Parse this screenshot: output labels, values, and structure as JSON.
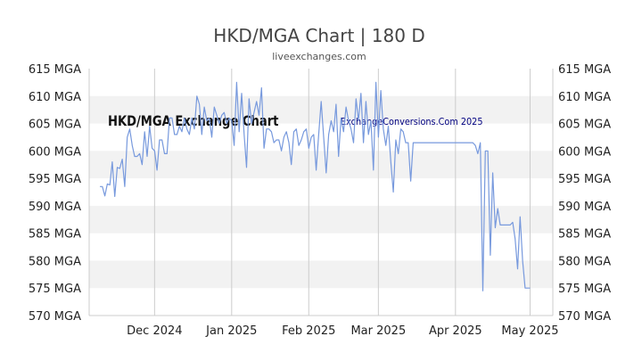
{
  "chart_data": {
    "type": "line",
    "title": "HKD/MGA Chart | 180 D",
    "subtitle": "liveexchanges.com",
    "watermark_left": "HKD/MGA Exchange Chart",
    "watermark_right": "ExchangeConversions.Com 2025",
    "ylim": [
      570,
      615
    ],
    "y_ticks": [
      615,
      610,
      605,
      600,
      595,
      590,
      585,
      580,
      575,
      570
    ],
    "y_unit": "MGA",
    "x_range": [
      "2024-11-09",
      "2025-05-08"
    ],
    "x_ticks": [
      {
        "date": "2024-12-01",
        "label": "Dec 2024"
      },
      {
        "date": "2025-01-01",
        "label": "Jan 2025"
      },
      {
        "date": "2025-02-01",
        "label": "Feb 2025"
      },
      {
        "date": "2025-03-01",
        "label": "Mar 2025"
      },
      {
        "date": "2025-04-01",
        "label": "Apr 2025"
      },
      {
        "date": "2025-05-01",
        "label": "May 2025"
      }
    ],
    "grid": true,
    "line_color": "#7799dd",
    "band_color": "#f2f2f2",
    "series": [
      {
        "values": [
          {
            "x": "2024-11-09",
            "y": 593.5
          },
          {
            "x": "2024-11-10",
            "y": 593.5
          },
          {
            "x": "2024-11-11",
            "y": 591.8
          },
          {
            "x": "2024-11-12",
            "y": 594.0
          },
          {
            "x": "2024-11-13",
            "y": 593.8
          },
          {
            "x": "2024-11-14",
            "y": 598.0
          },
          {
            "x": "2024-11-15",
            "y": 591.7
          },
          {
            "x": "2024-11-16",
            "y": 597.0
          },
          {
            "x": "2024-11-17",
            "y": 596.8
          },
          {
            "x": "2024-11-18",
            "y": 598.5
          },
          {
            "x": "2024-11-19",
            "y": 593.5
          },
          {
            "x": "2024-11-20",
            "y": 602.5
          },
          {
            "x": "2024-11-21",
            "y": 604.0
          },
          {
            "x": "2024-11-22",
            "y": 601.0
          },
          {
            "x": "2024-11-23",
            "y": 599.0
          },
          {
            "x": "2024-11-24",
            "y": 599.0
          },
          {
            "x": "2024-11-25",
            "y": 599.5
          },
          {
            "x": "2024-11-26",
            "y": 597.5
          },
          {
            "x": "2024-11-27",
            "y": 603.5
          },
          {
            "x": "2024-11-28",
            "y": 599.0
          },
          {
            "x": "2024-11-29",
            "y": 604.5
          },
          {
            "x": "2024-11-30",
            "y": 600.5
          },
          {
            "x": "2024-12-01",
            "y": 600.0
          },
          {
            "x": "2024-12-02",
            "y": 596.5
          },
          {
            "x": "2024-12-03",
            "y": 602.0
          },
          {
            "x": "2024-12-04",
            "y": 602.0
          },
          {
            "x": "2024-12-05",
            "y": 599.5
          },
          {
            "x": "2024-12-06",
            "y": 599.5
          },
          {
            "x": "2024-12-07",
            "y": 606.0
          },
          {
            "x": "2024-12-08",
            "y": 606.0
          },
          {
            "x": "2024-12-09",
            "y": 603.0
          },
          {
            "x": "2024-12-10",
            "y": 603.0
          },
          {
            "x": "2024-12-11",
            "y": 604.5
          },
          {
            "x": "2024-12-12",
            "y": 603.5
          },
          {
            "x": "2024-12-13",
            "y": 606.0
          },
          {
            "x": "2024-12-14",
            "y": 604.0
          },
          {
            "x": "2024-12-15",
            "y": 603.0
          },
          {
            "x": "2024-12-16",
            "y": 606.0
          },
          {
            "x": "2024-12-17",
            "y": 604.0
          },
          {
            "x": "2024-12-18",
            "y": 610.0
          },
          {
            "x": "2024-12-19",
            "y": 608.5
          },
          {
            "x": "2024-12-20",
            "y": 603.0
          },
          {
            "x": "2024-12-21",
            "y": 608.0
          },
          {
            "x": "2024-12-22",
            "y": 605.5
          },
          {
            "x": "2024-12-23",
            "y": 606.0
          },
          {
            "x": "2024-12-24",
            "y": 602.5
          },
          {
            "x": "2024-12-25",
            "y": 608.0
          },
          {
            "x": "2024-12-26",
            "y": 606.5
          },
          {
            "x": "2024-12-27",
            "y": 605.0
          },
          {
            "x": "2024-12-28",
            "y": 606.5
          },
          {
            "x": "2024-12-29",
            "y": 607.0
          },
          {
            "x": "2024-12-30",
            "y": 605.0
          },
          {
            "x": "2024-12-31",
            "y": 606.0
          },
          {
            "x": "2025-01-01",
            "y": 605.5
          },
          {
            "x": "2025-01-02",
            "y": 601.0
          },
          {
            "x": "2025-01-03",
            "y": 612.5
          },
          {
            "x": "2025-01-04",
            "y": 603.5
          },
          {
            "x": "2025-01-05",
            "y": 610.5
          },
          {
            "x": "2025-01-06",
            "y": 603.0
          },
          {
            "x": "2025-01-07",
            "y": 597.0
          },
          {
            "x": "2025-01-08",
            "y": 609.5
          },
          {
            "x": "2025-01-09",
            "y": 605.0
          },
          {
            "x": "2025-01-10",
            "y": 607.0
          },
          {
            "x": "2025-01-11",
            "y": 609.0
          },
          {
            "x": "2025-01-12",
            "y": 606.5
          },
          {
            "x": "2025-01-13",
            "y": 611.5
          },
          {
            "x": "2025-01-14",
            "y": 600.5
          },
          {
            "x": "2025-01-15",
            "y": 604.0
          },
          {
            "x": "2025-01-16",
            "y": 604.0
          },
          {
            "x": "2025-01-17",
            "y": 603.5
          },
          {
            "x": "2025-01-18",
            "y": 601.5
          },
          {
            "x": "2025-01-19",
            "y": 602.0
          },
          {
            "x": "2025-01-20",
            "y": 602.0
          },
          {
            "x": "2025-01-21",
            "y": 600.0
          },
          {
            "x": "2025-01-22",
            "y": 602.5
          },
          {
            "x": "2025-01-23",
            "y": 603.5
          },
          {
            "x": "2025-01-24",
            "y": 601.5
          },
          {
            "x": "2025-01-25",
            "y": 597.5
          },
          {
            "x": "2025-01-26",
            "y": 603.5
          },
          {
            "x": "2025-01-27",
            "y": 604.0
          },
          {
            "x": "2025-01-28",
            "y": 601.0
          },
          {
            "x": "2025-01-29",
            "y": 602.0
          },
          {
            "x": "2025-01-30",
            "y": 603.5
          },
          {
            "x": "2025-01-31",
            "y": 604.0
          },
          {
            "x": "2025-02-01",
            "y": 600.5
          },
          {
            "x": "2025-02-02",
            "y": 602.5
          },
          {
            "x": "2025-02-03",
            "y": 603.0
          },
          {
            "x": "2025-02-04",
            "y": 596.5
          },
          {
            "x": "2025-02-05",
            "y": 603.0
          },
          {
            "x": "2025-02-06",
            "y": 609.0
          },
          {
            "x": "2025-02-07",
            "y": 602.5
          },
          {
            "x": "2025-02-08",
            "y": 596.0
          },
          {
            "x": "2025-02-09",
            "y": 603.0
          },
          {
            "x": "2025-02-10",
            "y": 605.5
          },
          {
            "x": "2025-02-11",
            "y": 603.5
          },
          {
            "x": "2025-02-12",
            "y": 608.5
          },
          {
            "x": "2025-02-13",
            "y": 599.0
          },
          {
            "x": "2025-02-14",
            "y": 606.0
          },
          {
            "x": "2025-02-15",
            "y": 603.5
          },
          {
            "x": "2025-02-16",
            "y": 608.0
          },
          {
            "x": "2025-02-17",
            "y": 605.5
          },
          {
            "x": "2025-02-18",
            "y": 604.0
          },
          {
            "x": "2025-02-19",
            "y": 601.5
          },
          {
            "x": "2025-02-20",
            "y": 609.5
          },
          {
            "x": "2025-02-21",
            "y": 605.5
          },
          {
            "x": "2025-02-22",
            "y": 610.5
          },
          {
            "x": "2025-02-23",
            "y": 601.5
          },
          {
            "x": "2025-02-24",
            "y": 609.0
          },
          {
            "x": "2025-02-25",
            "y": 603.0
          },
          {
            "x": "2025-02-26",
            "y": 605.5
          },
          {
            "x": "2025-02-27",
            "y": 596.5
          },
          {
            "x": "2025-02-28",
            "y": 612.5
          },
          {
            "x": "2025-03-01",
            "y": 602.5
          },
          {
            "x": "2025-03-02",
            "y": 611.0
          },
          {
            "x": "2025-03-03",
            "y": 604.0
          },
          {
            "x": "2025-03-04",
            "y": 601.0
          },
          {
            "x": "2025-03-05",
            "y": 604.5
          },
          {
            "x": "2025-03-06",
            "y": 598.0
          },
          {
            "x": "2025-03-07",
            "y": 592.5
          },
          {
            "x": "2025-03-08",
            "y": 602.0
          },
          {
            "x": "2025-03-09",
            "y": 599.5
          },
          {
            "x": "2025-03-10",
            "y": 604.0
          },
          {
            "x": "2025-03-11",
            "y": 603.5
          },
          {
            "x": "2025-03-12",
            "y": 601.5
          },
          {
            "x": "2025-03-13",
            "y": 601.5
          },
          {
            "x": "2025-03-14",
            "y": 594.5
          },
          {
            "x": "2025-03-15",
            "y": 601.5
          },
          {
            "x": "2025-03-16",
            "y": 601.5
          },
          {
            "x": "2025-03-28",
            "y": 601.5
          },
          {
            "x": "2025-04-08",
            "y": 601.5
          },
          {
            "x": "2025-04-09",
            "y": 601.0
          },
          {
            "x": "2025-04-10",
            "y": 599.5
          },
          {
            "x": "2025-04-11",
            "y": 601.5
          },
          {
            "x": "2025-04-12",
            "y": 574.5
          },
          {
            "x": "2025-04-13",
            "y": 600.0
          },
          {
            "x": "2025-04-14",
            "y": 600.0
          },
          {
            "x": "2025-04-15",
            "y": 581.0
          },
          {
            "x": "2025-04-16",
            "y": 596.0
          },
          {
            "x": "2025-04-17",
            "y": 586.0
          },
          {
            "x": "2025-04-18",
            "y": 589.5
          },
          {
            "x": "2025-04-19",
            "y": 586.5
          },
          {
            "x": "2025-04-20",
            "y": 586.5
          },
          {
            "x": "2025-04-21",
            "y": 586.5
          },
          {
            "x": "2025-04-22",
            "y": 586.5
          },
          {
            "x": "2025-04-23",
            "y": 586.5
          },
          {
            "x": "2025-04-24",
            "y": 587.0
          },
          {
            "x": "2025-04-25",
            "y": 584.0
          },
          {
            "x": "2025-04-26",
            "y": 578.5
          },
          {
            "x": "2025-04-27",
            "y": 588.0
          },
          {
            "x": "2025-04-28",
            "y": 580.0
          },
          {
            "x": "2025-04-29",
            "y": 575.0
          },
          {
            "x": "2025-04-30",
            "y": 575.0
          },
          {
            "x": "2025-05-01",
            "y": 575.0
          }
        ]
      }
    ]
  }
}
